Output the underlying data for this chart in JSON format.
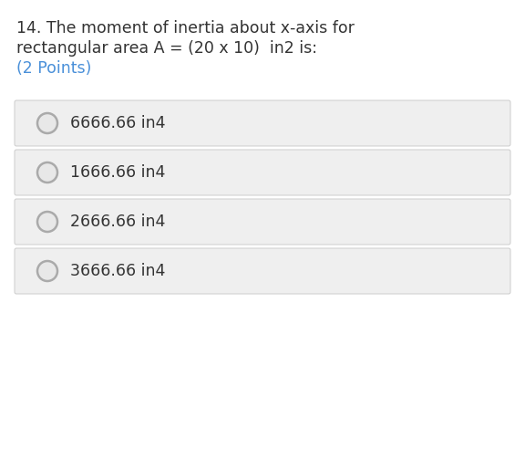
{
  "title_line1": "14. The moment of inertia about x-axis for",
  "title_line2": "rectangular area A = (20 x 10)  in2 is:",
  "points_text": "(2 Points)",
  "options": [
    "6666.66 in4",
    "1666.66 in4",
    "2666.66 in4",
    "3666.66 in4"
  ],
  "background_color": "#ffffff",
  "option_box_color": "#efefef",
  "option_box_border_color": "#cccccc",
  "title_color": "#333333",
  "points_color": "#4a90d9",
  "option_text_color": "#333333",
  "circle_edge_color": "#aaaaaa",
  "circle_fill_color": "#e8e8e8",
  "title_fontsize": 12.5,
  "option_fontsize": 12.5,
  "points_fontsize": 12.5
}
